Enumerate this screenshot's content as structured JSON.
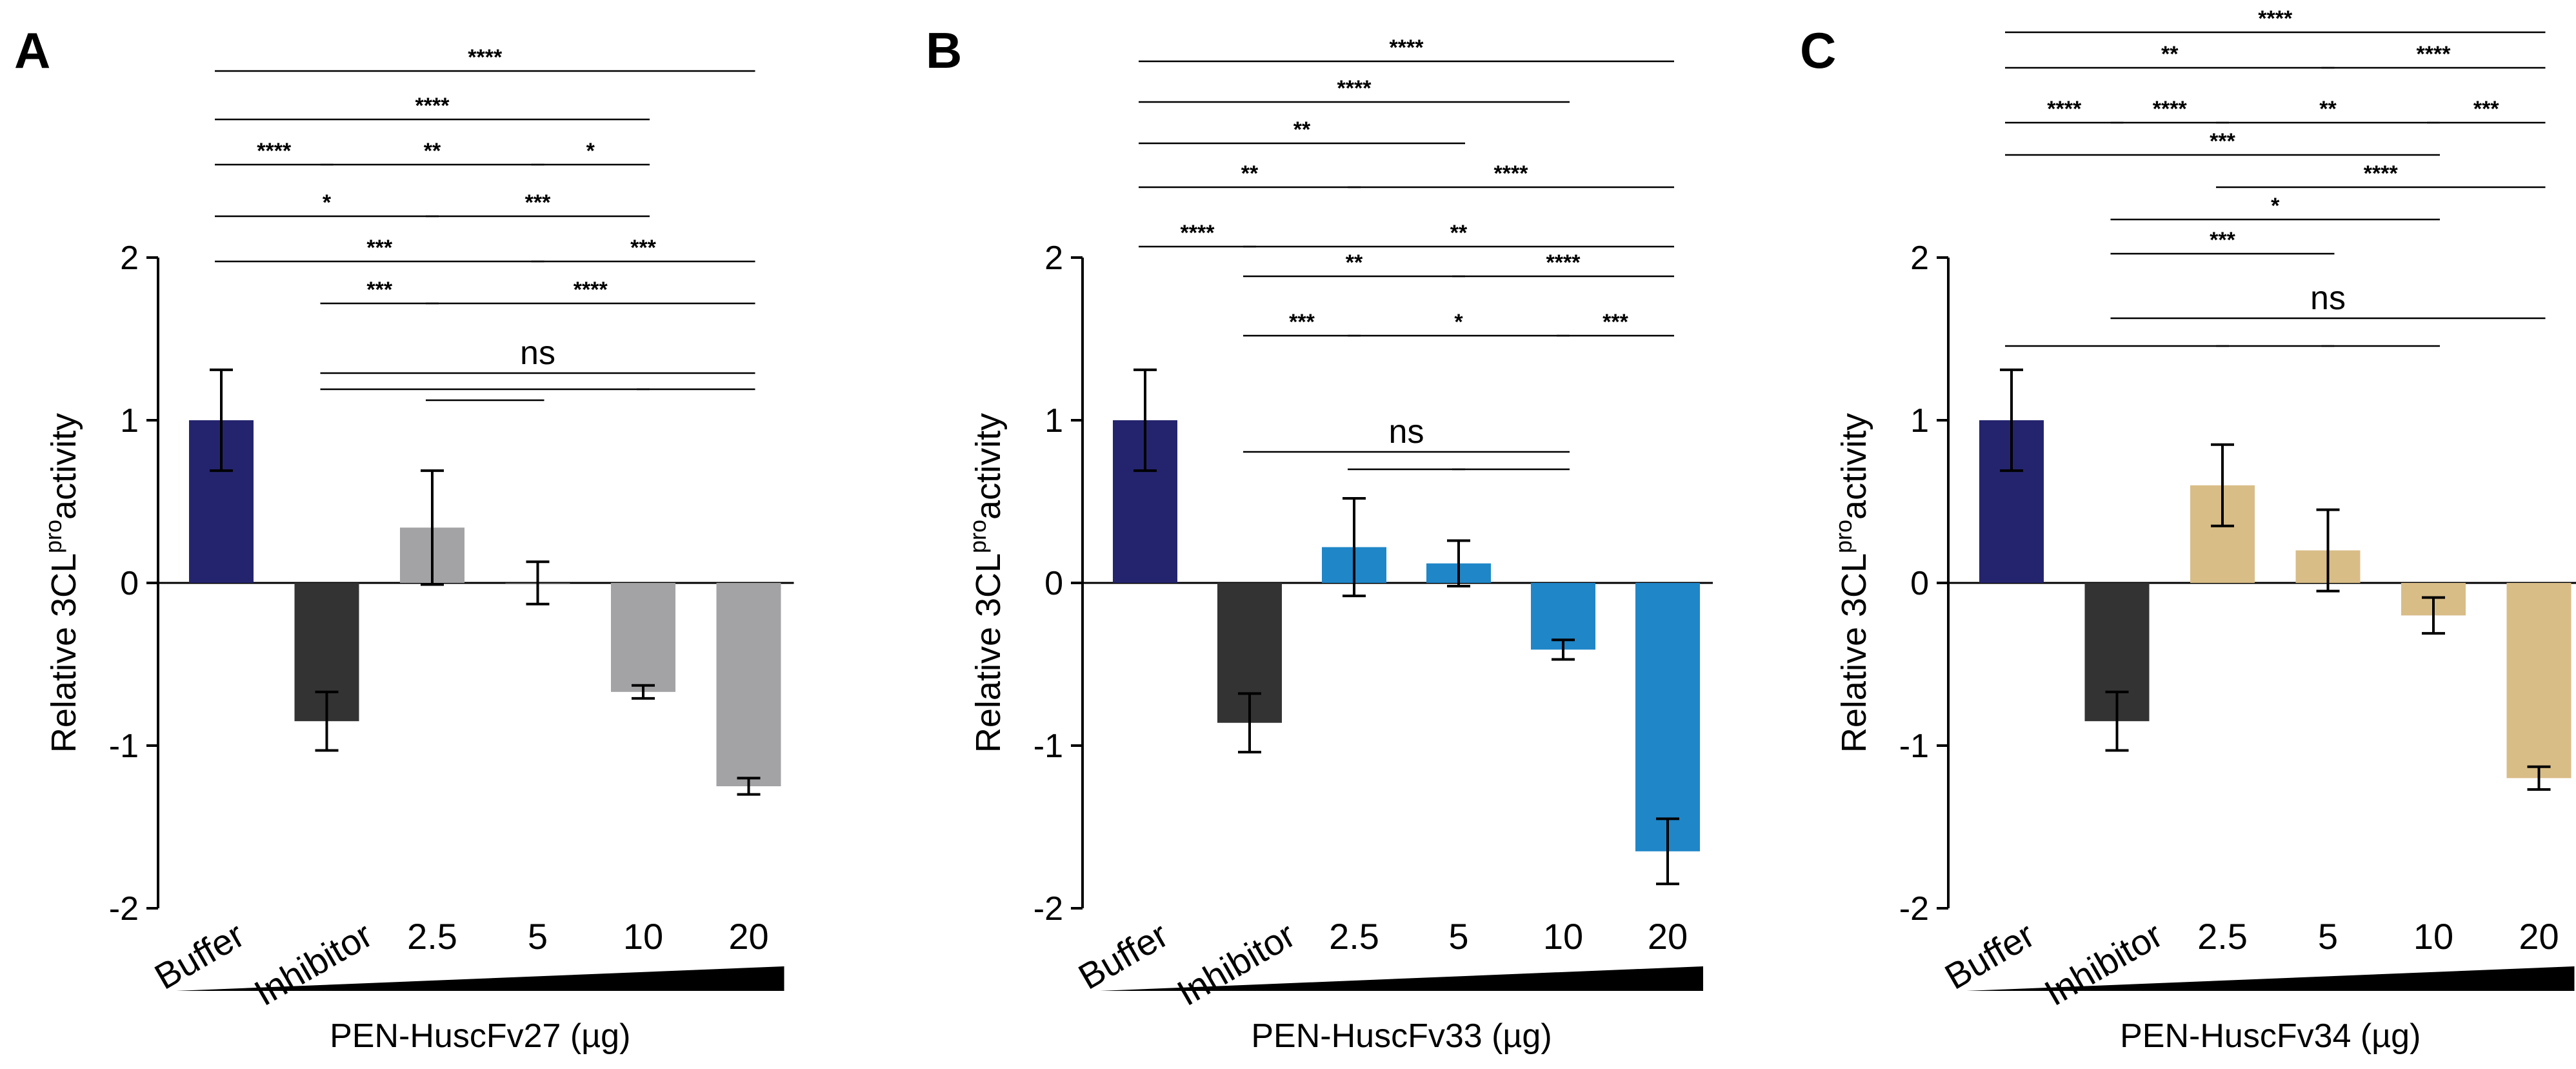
{
  "colors": {
    "buffer": "#24246e",
    "inhibitor": "#333333",
    "panelA": "#a3a3a6",
    "panelB": "#1f86c8",
    "panelC": "#d9bd87",
    "line": "#000000"
  },
  "chart_data": [
    {
      "panel": "A",
      "type": "bar",
      "categories": [
        "Buffer",
        "Inhibitor",
        "2.5",
        "5",
        "10",
        "20"
      ],
      "values": [
        1.0,
        -0.85,
        0.34,
        0.0,
        -0.67,
        -1.25
      ],
      "errors": [
        0.31,
        0.18,
        0.35,
        0.13,
        0.04,
        0.05
      ],
      "ylabel": "Relative 3CL",
      "ylabel_sup": "pro",
      "ylabel_suffix": "activity",
      "xlabel": "PEN-HuscFv27 (µg)",
      "ylim": [
        -2,
        2
      ],
      "yticks": [
        "2",
        "1",
        "0",
        "-1",
        "-2"
      ],
      "significance": [
        {
          "left": 0,
          "right": 5,
          "label": "****"
        },
        {
          "left": 0,
          "right": 4,
          "label": "****"
        },
        {
          "left": 0,
          "right": 1,
          "label": "****"
        },
        {
          "left": 1,
          "right": 3,
          "label": "**"
        },
        {
          "left": 3,
          "right": 4,
          "label": "*"
        },
        {
          "left": 0,
          "right": 2,
          "label": "*"
        },
        {
          "left": 2,
          "right": 4,
          "label": "***"
        },
        {
          "left": 0,
          "right": 3,
          "label": "***"
        },
        {
          "left": 3,
          "right": 5,
          "label": "***"
        },
        {
          "left": 1,
          "right": 2,
          "label": "***"
        },
        {
          "left": 2,
          "right": 5,
          "label": "****"
        },
        {
          "left": 1,
          "right": 5,
          "label": "ns"
        },
        {
          "left": 1,
          "right": 4,
          "label": ""
        },
        {
          "left": 4,
          "right": 5,
          "label": ""
        },
        {
          "left": 2,
          "right": 3,
          "label": ""
        }
      ]
    },
    {
      "panel": "B",
      "type": "bar",
      "categories": [
        "Buffer",
        "Inhibitor",
        "2.5",
        "5",
        "10",
        "20"
      ],
      "values": [
        1.0,
        -0.86,
        0.22,
        0.12,
        -0.41,
        -1.65
      ],
      "errors": [
        0.31,
        0.18,
        0.3,
        0.14,
        0.06,
        0.2
      ],
      "ylabel": "Relative 3CL",
      "ylabel_sup": "pro",
      "ylabel_suffix": "activity",
      "xlabel": "PEN-HuscFv33 (µg)",
      "ylim": [
        -2,
        2
      ],
      "yticks": [
        "2",
        "1",
        "0",
        "-1",
        "-2"
      ],
      "significance": [
        {
          "left": 0,
          "right": 5,
          "label": "****"
        },
        {
          "left": 0,
          "right": 4,
          "label": "****"
        },
        {
          "left": 0,
          "right": 3,
          "label": "**"
        },
        {
          "left": 0,
          "right": 2,
          "label": "**"
        },
        {
          "left": 2,
          "right": 5,
          "label": "****"
        },
        {
          "left": 0,
          "right": 1,
          "label": "****"
        },
        {
          "left": 1,
          "right": 5,
          "label": "**"
        },
        {
          "left": 1,
          "right": 3,
          "label": "**"
        },
        {
          "left": 3,
          "right": 5,
          "label": "****"
        },
        {
          "left": 1,
          "right": 2,
          "label": "***"
        },
        {
          "left": 2,
          "right": 4,
          "label": "*"
        },
        {
          "left": 4,
          "right": 5,
          "label": "***"
        },
        {
          "left": 1,
          "right": 4,
          "label": "ns"
        },
        {
          "left": 2,
          "right": 3,
          "label": ""
        },
        {
          "left": 3,
          "right": 4,
          "label": ""
        }
      ]
    },
    {
      "panel": "C",
      "type": "bar",
      "categories": [
        "Buffer",
        "Inhibitor",
        "2.5",
        "5",
        "10",
        "20"
      ],
      "values": [
        1.0,
        -0.85,
        0.6,
        0.2,
        -0.2,
        -1.2
      ],
      "errors": [
        0.31,
        0.18,
        0.25,
        0.25,
        0.11,
        0.07
      ],
      "ylabel": "Relative 3CL",
      "ylabel_sup": "pro",
      "ylabel_suffix": "activity",
      "xlabel": "PEN-HuscFv34 (µg)",
      "ylim": [
        -2,
        2
      ],
      "yticks": [
        "2",
        "1",
        "0",
        "-1",
        "-2"
      ],
      "significance": [
        {
          "left": 0,
          "right": 5,
          "label": "****"
        },
        {
          "left": 0,
          "right": 3,
          "label": "**"
        },
        {
          "left": 3,
          "right": 5,
          "label": "****"
        },
        {
          "left": 0,
          "right": 1,
          "label": "****"
        },
        {
          "left": 1,
          "right": 2,
          "label": "****"
        },
        {
          "left": 2,
          "right": 4,
          "label": "**"
        },
        {
          "left": 4,
          "right": 5,
          "label": "***"
        },
        {
          "left": 0,
          "right": 4,
          "label": "***"
        },
        {
          "left": 2,
          "right": 5,
          "label": "****"
        },
        {
          "left": 1,
          "right": 4,
          "label": "*"
        },
        {
          "left": 1,
          "right": 3,
          "label": "***"
        },
        {
          "left": 1,
          "right": 5,
          "label": "ns"
        },
        {
          "left": 0,
          "right": 2,
          "label": ""
        },
        {
          "left": 2,
          "right": 3,
          "label": ""
        },
        {
          "left": 3,
          "right": 4,
          "label": ""
        }
      ]
    }
  ]
}
